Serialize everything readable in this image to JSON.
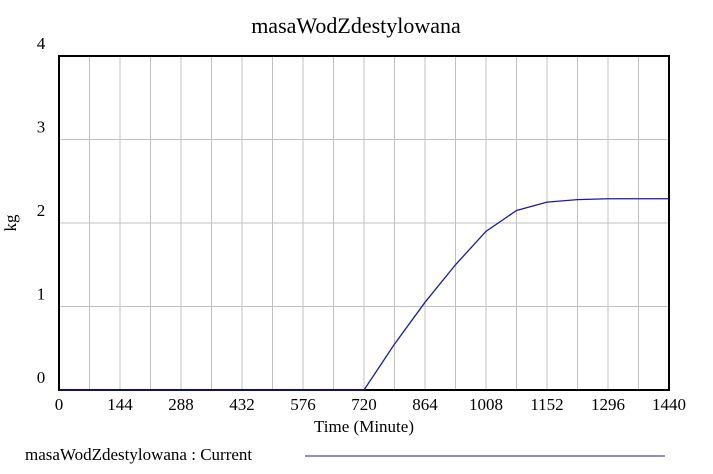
{
  "chart_data": {
    "type": "line",
    "title": "masaWodZdestylowana",
    "x_label": "Time (Minute)",
    "y_label": "kg",
    "x": [
      0,
      72,
      144,
      216,
      288,
      360,
      432,
      504,
      576,
      648,
      720,
      792,
      864,
      936,
      1008,
      1080,
      1152,
      1224,
      1296,
      1368,
      1440
    ],
    "series": [
      {
        "name": "masaWodZdestylowana : Current",
        "color": "#1a1aa6",
        "values": [
          0,
          0,
          0,
          0,
          0,
          0,
          0,
          0,
          0,
          0,
          0,
          0.55,
          1.05,
          1.5,
          1.9,
          2.15,
          2.25,
          2.28,
          2.29,
          2.29,
          2.29
        ]
      }
    ],
    "xlim": [
      0,
      1440
    ],
    "xticks": [
      0,
      144,
      288,
      432,
      576,
      720,
      864,
      1008,
      1152,
      1296,
      1440
    ],
    "xminorticks": [
      72,
      216,
      360,
      504,
      648,
      792,
      936,
      1080,
      1224,
      1368
    ],
    "ylim": [
      0,
      4
    ],
    "yticks": [
      0,
      1,
      2,
      3,
      4
    ],
    "grid": true
  }
}
